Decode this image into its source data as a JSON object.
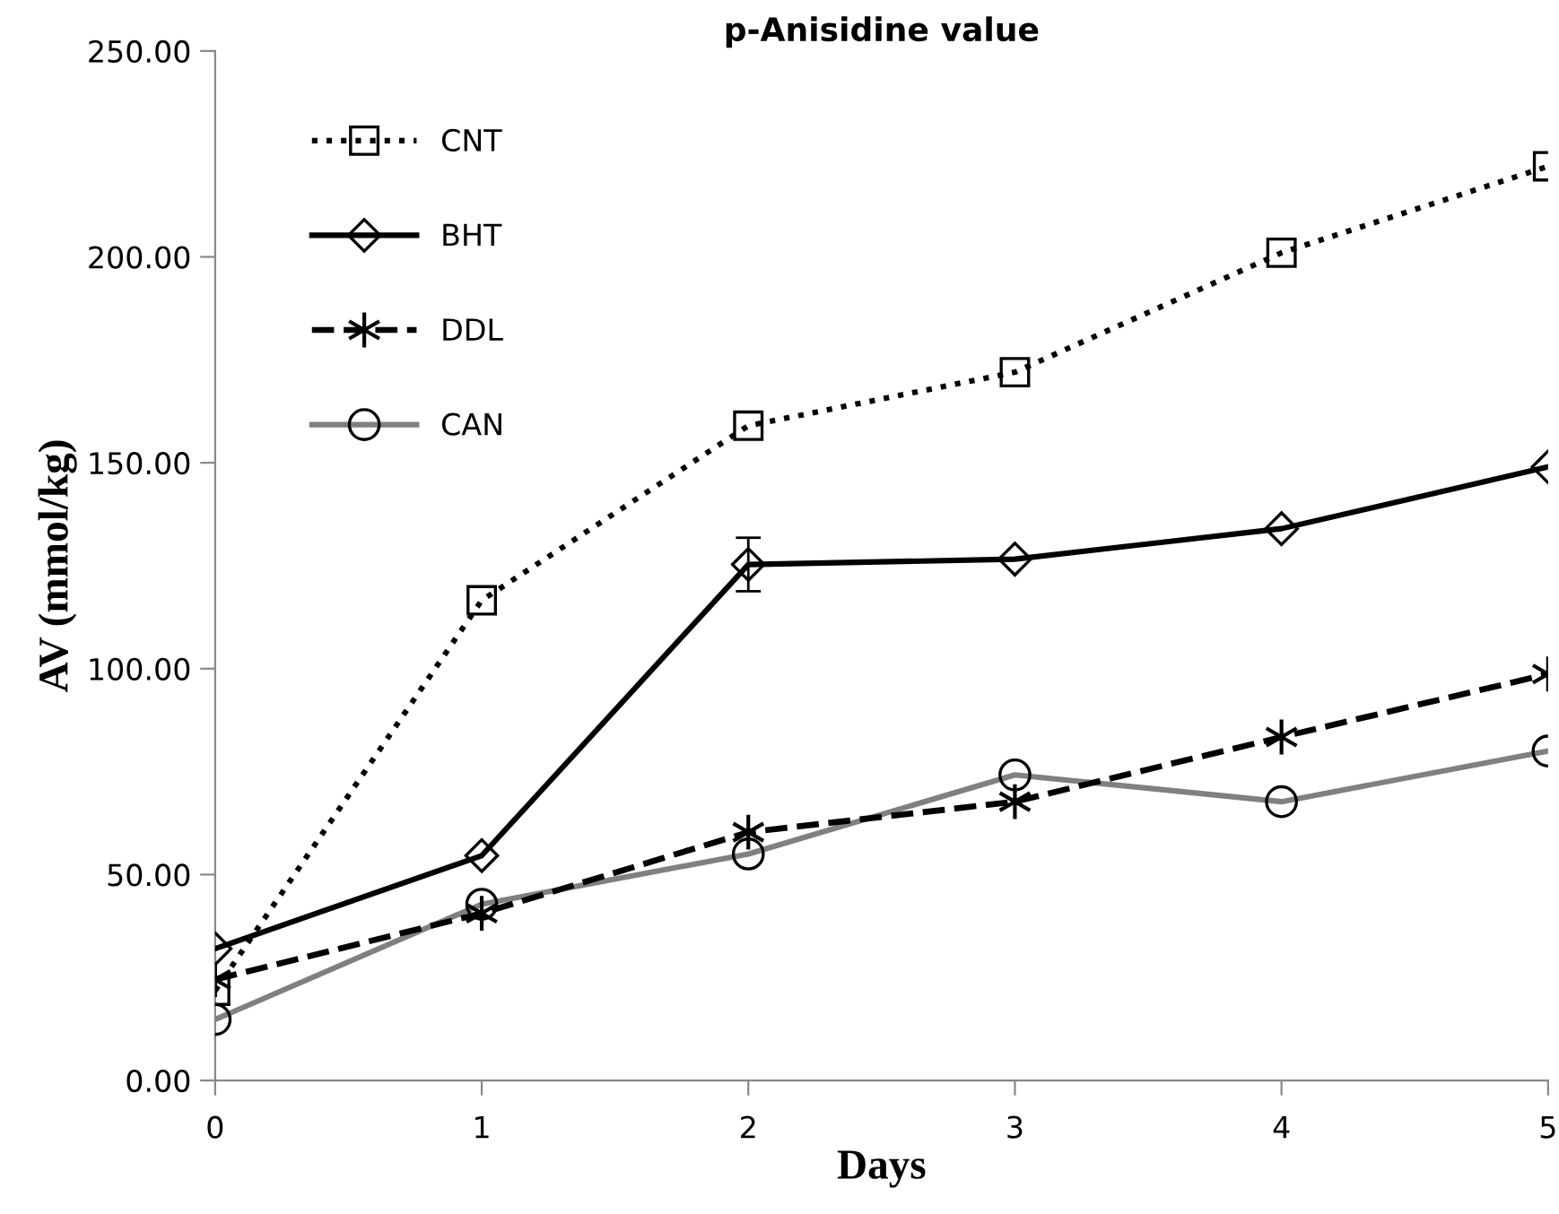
{
  "chart_data": {
    "type": "line",
    "title": "p-Anisidine value",
    "xlabel": "Days",
    "ylabel": "AV (mmol/kg)",
    "x": [
      0,
      1,
      2,
      3,
      4,
      5
    ],
    "series": [
      {
        "name": "CNT",
        "color": "#000000",
        "marker": "square",
        "line_style": "dotted",
        "values": [
          21.8,
          116.6,
          159,
          172,
          201,
          222
        ]
      },
      {
        "name": "BHT",
        "color": "#000000",
        "marker": "diamond",
        "line_style": "solid",
        "values": [
          32,
          54.6,
          125.3,
          126.6,
          134,
          149
        ],
        "errors": [
          null,
          null,
          6.5,
          null,
          null,
          null
        ]
      },
      {
        "name": "DDL",
        "color": "#000000",
        "marker": "cross",
        "line_style": "dashed",
        "values": [
          24.5,
          40.6,
          60.3,
          67.7,
          83.4,
          98.7
        ]
      },
      {
        "name": "CAN",
        "color": "#808080",
        "marker": "circle",
        "line_style": "solid",
        "values": [
          14.8,
          42.8,
          55,
          74.2,
          67.7,
          80
        ]
      }
    ],
    "xlim": [
      0,
      5
    ],
    "ylim": [
      0,
      250
    ],
    "xticks": [
      0,
      1,
      2,
      3,
      4,
      5
    ],
    "yticks": [
      {
        "value": 0,
        "label": "0.00"
      },
      {
        "value": 50,
        "label": "50.00"
      },
      {
        "value": 100,
        "label": "100.00"
      },
      {
        "value": 150,
        "label": "150.00"
      },
      {
        "value": 200,
        "label": "200.00"
      },
      {
        "value": 250,
        "label": "250.00"
      }
    ],
    "grid": false,
    "legend": "top left"
  }
}
